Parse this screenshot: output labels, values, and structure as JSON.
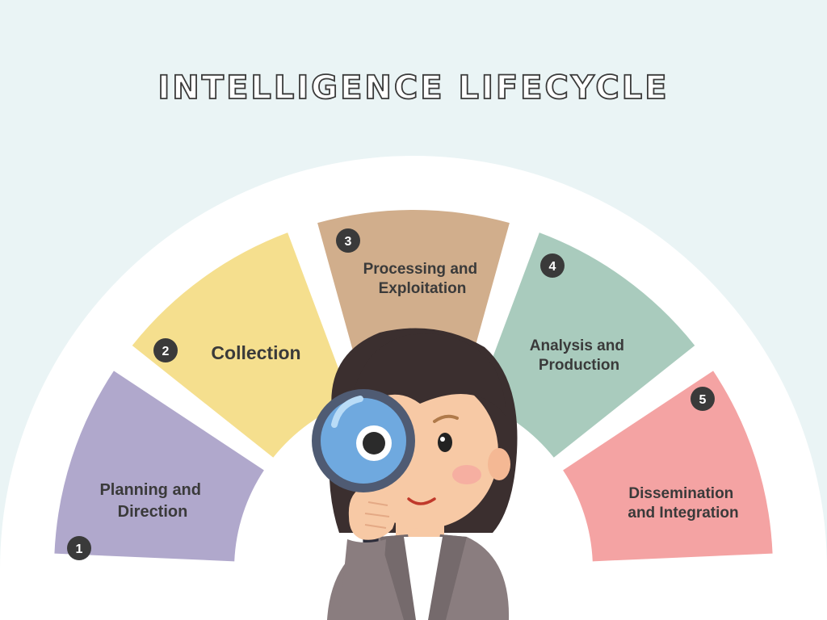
{
  "title": "INTELLIGENCE LIFECYCLE",
  "colors": {
    "background": "#eaf4f5",
    "arch": "#ffffff",
    "title_stroke": "#3a3a3a",
    "badge": "#3a3a3a"
  },
  "stages": [
    {
      "number": "1",
      "lines": [
        "Planning and",
        "Direction"
      ],
      "color": "#b0a8cc"
    },
    {
      "number": "2",
      "lines": [
        "Collection"
      ],
      "color": "#f5df8e"
    },
    {
      "number": "3",
      "lines": [
        "Processing and",
        "Exploitation"
      ],
      "color": "#d1ae8c"
    },
    {
      "number": "4",
      "lines": [
        "Analysis and",
        "Production"
      ],
      "color": "#a9cbbd"
    },
    {
      "number": "5",
      "lines": [
        "Dissemination",
        "and Integration"
      ],
      "color": "#f4a3a3"
    }
  ],
  "illustration": "woman-with-magnifying-glass"
}
